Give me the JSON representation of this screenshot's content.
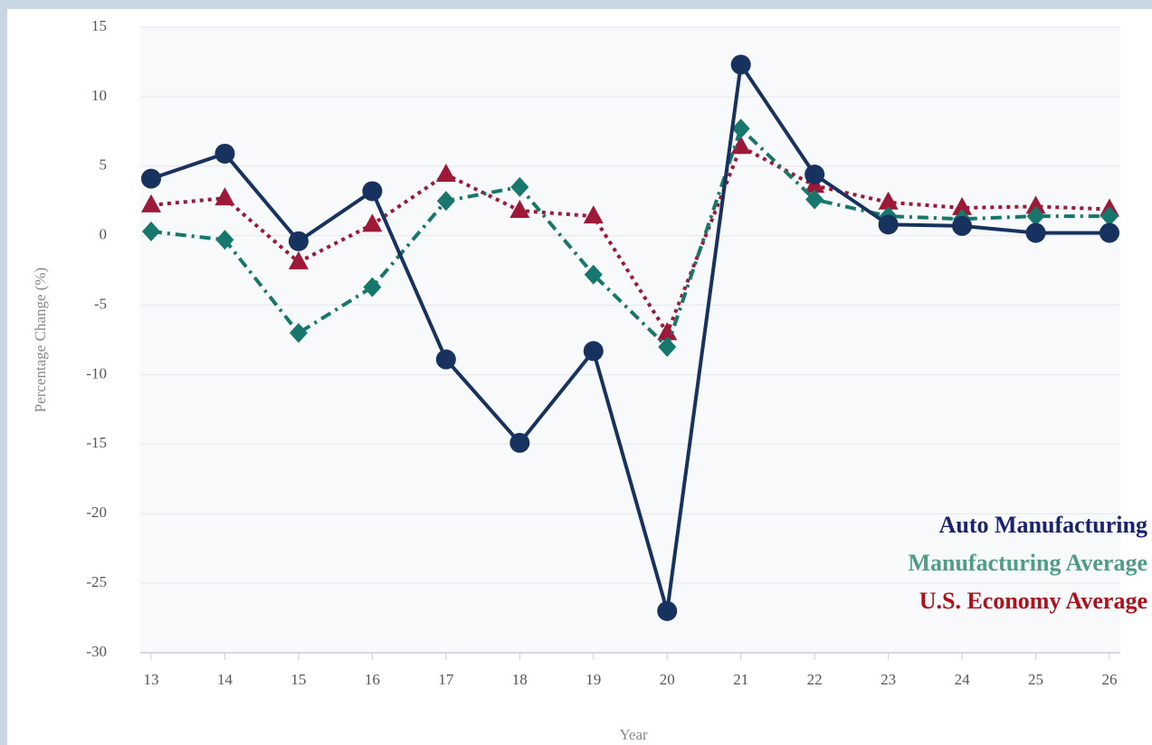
{
  "chart_data": {
    "type": "line",
    "x_label": "Year",
    "y_label": "Percentage Change (%)",
    "categories": [
      "13",
      "14",
      "15",
      "16",
      "17",
      "18",
      "19",
      "20",
      "21",
      "22",
      "23",
      "24",
      "25",
      "26"
    ],
    "series": [
      {
        "name": "Auto Manufacturing",
        "color": "#17325e",
        "label_color": "#1b2370",
        "marker": "circle",
        "dash": "solid",
        "values": [
          4.1,
          5.9,
          -0.4,
          3.2,
          -8.9,
          -14.9,
          -8.3,
          -27,
          12.3,
          4.4,
          0.8,
          0.7,
          0.2,
          0.2
        ]
      },
      {
        "name": "Manufacturing Average",
        "color": "#17776c",
        "label_color": "#4f9e83",
        "marker": "diamond",
        "dash": "dashdot",
        "values": [
          0.3,
          -0.3,
          -7.0,
          -3.7,
          2.5,
          3.5,
          -2.8,
          -8.0,
          7.7,
          2.6,
          1.4,
          1.2,
          1.4,
          1.4
        ]
      },
      {
        "name": "U.S. Economy Average",
        "color": "#9e1838",
        "label_color": "#b0101c",
        "marker": "triangle",
        "dash": "dotted",
        "values": [
          2.2,
          2.7,
          -1.9,
          0.8,
          4.4,
          1.8,
          1.4,
          -7.0,
          6.4,
          3.6,
          2.4,
          2.0,
          2.1,
          1.9
        ]
      }
    ],
    "ylim": [
      -30,
      15
    ],
    "yticks": [
      -30,
      -25,
      -20,
      -15,
      -10,
      -5,
      0,
      5,
      10,
      15
    ],
    "grid": true,
    "legend": "lower right"
  }
}
